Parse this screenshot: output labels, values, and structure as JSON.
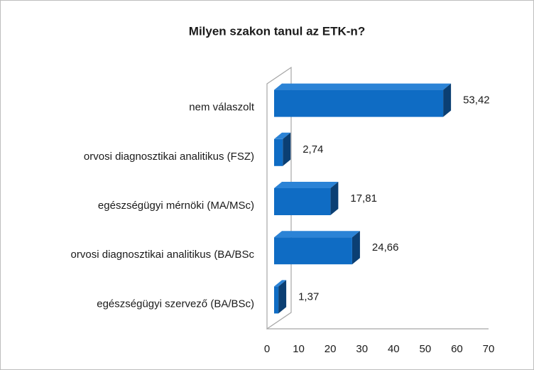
{
  "chart_data": {
    "type": "bar3d_horizontal",
    "title": "Milyen szakon tanul az ETK-n?",
    "categories": [
      "nem válaszolt",
      "orvosi diagnosztikai analitikus (FSZ)",
      "egészségügyi mérnöki (MA/MSc)",
      "orvosi diagnosztikai analitikus (BA/BSc",
      "egészségügyi szervező (BA/BSc)"
    ],
    "values": [
      53.42,
      2.74,
      17.81,
      24.66,
      1.37
    ],
    "value_labels": [
      "53,42",
      "2,74",
      "17,81",
      "24,66",
      "1,37"
    ],
    "color": "#0f6cc4",
    "xlim": [
      0,
      70
    ],
    "xticks": [
      0,
      10,
      20,
      30,
      40,
      50,
      60,
      70
    ]
  }
}
